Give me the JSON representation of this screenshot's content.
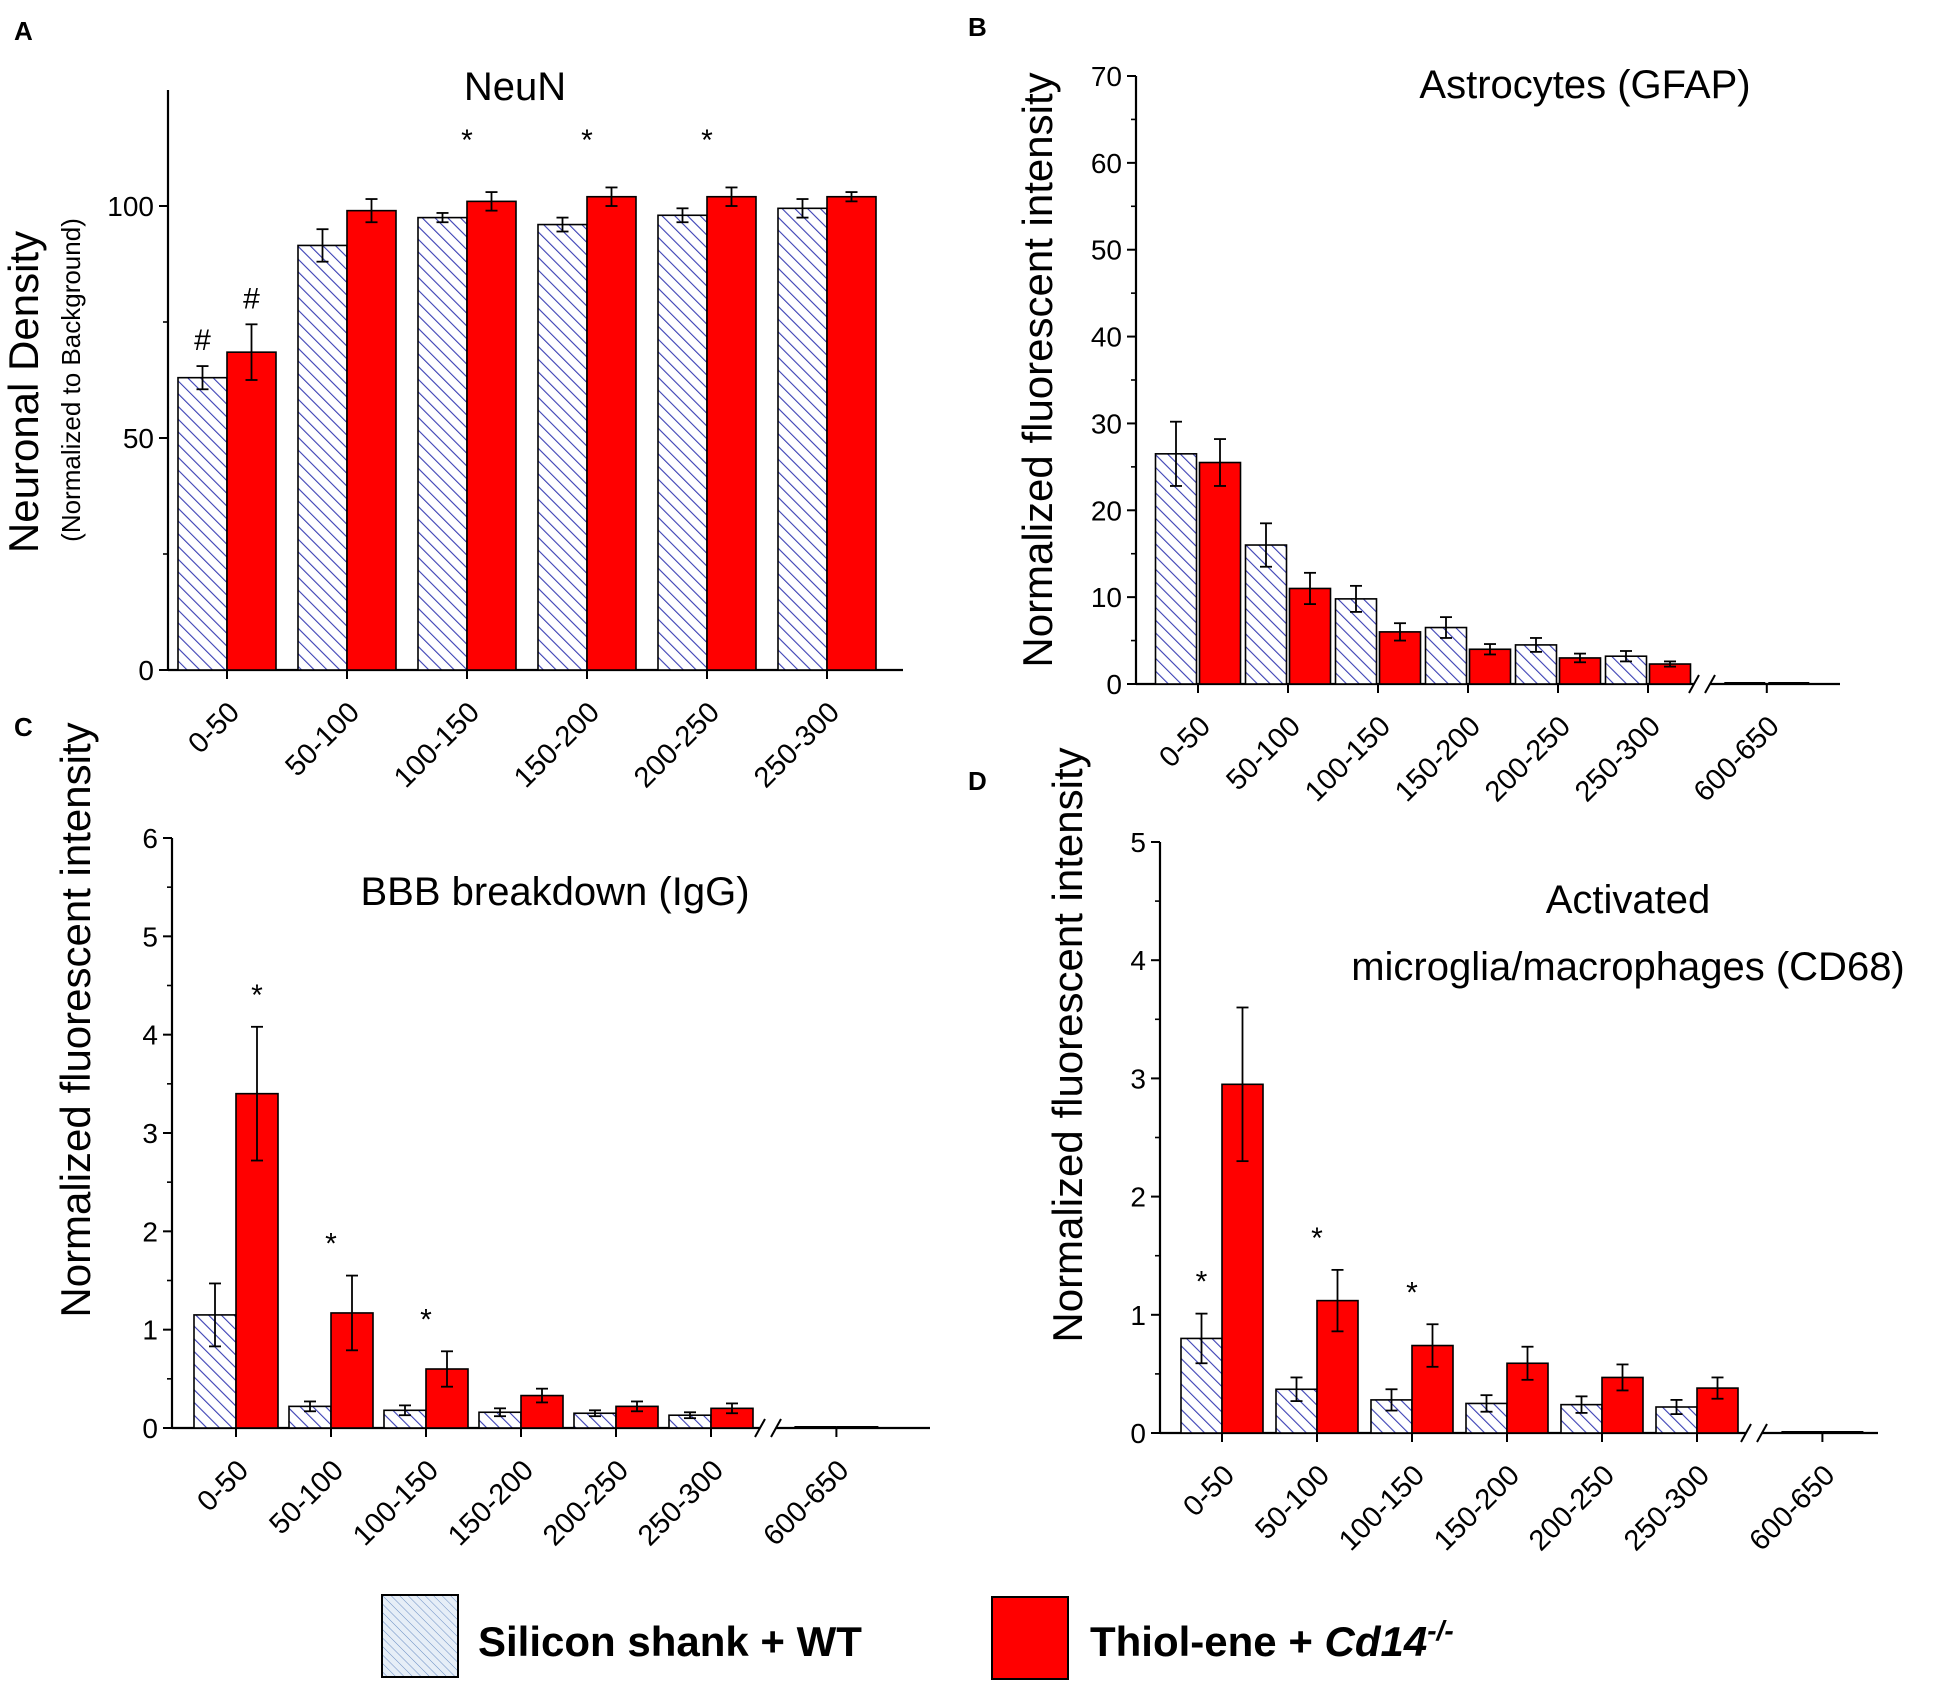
{
  "legend": {
    "series1": "Silicon shank + WT",
    "series2_prefix": "Thiol-ene + ",
    "series2_gene": "Cd14",
    "series2_sup": "-/-"
  },
  "colors": {
    "series1_hatch": "#3a3fb4",
    "series1_fill": "#ffffff",
    "series2_fill": "#ff0000",
    "legend_series1_fill": "#e6eef7"
  },
  "chart_data": [
    {
      "panel": "A",
      "type": "bar",
      "title": "NeuN",
      "ylabel": "Neuronal Density",
      "ylabel_sub": "(Normalized to Background)",
      "xlabel": "",
      "ylim": [
        0,
        125
      ],
      "yticks": [
        0,
        50,
        100
      ],
      "ytick_labels": [
        "0",
        "50",
        "100"
      ],
      "categories": [
        "0-50",
        "50-100",
        "100-150",
        "150-200",
        "200-250",
        "250-300"
      ],
      "axis_break": false,
      "series": [
        {
          "name": "Silicon shank + WT",
          "values": [
            63,
            91.5,
            97.5,
            96,
            98,
            99.5
          ],
          "errors": [
            2.5,
            3.5,
            1,
            1.5,
            1.5,
            2
          ]
        },
        {
          "name": "Thiol-ene + Cd14-/-",
          "values": [
            68.5,
            99,
            101,
            102,
            102,
            102
          ],
          "errors": [
            6,
            2.5,
            2,
            2,
            2,
            1
          ]
        }
      ],
      "annotations": [
        {
          "text": "#",
          "category": 0,
          "series": 0
        },
        {
          "text": "#",
          "category": 0,
          "series": 1
        },
        {
          "text": "*",
          "category": 2,
          "series": -1
        },
        {
          "text": "*",
          "category": 3,
          "series": -1
        },
        {
          "text": "*",
          "category": 4,
          "series": -1
        }
      ]
    },
    {
      "panel": "B",
      "type": "bar",
      "title": "Astrocytes (GFAP)",
      "ylabel": "Normalized fluorescent intensity",
      "xlabel": "",
      "ylim": [
        0,
        70
      ],
      "yticks": [
        0,
        10,
        20,
        30,
        40,
        50,
        60,
        70
      ],
      "ytick_labels": [
        "0",
        "10",
        "20",
        "30",
        "40",
        "50",
        "60",
        "70"
      ],
      "categories": [
        "0-50",
        "50-100",
        "100-150",
        "150-200",
        "200-250",
        "250-300",
        "600-650"
      ],
      "axis_break": true,
      "series": [
        {
          "name": "Silicon shank + WT",
          "values": [
            26.5,
            16,
            9.8,
            6.5,
            4.5,
            3.2,
            0
          ],
          "errors": [
            3.7,
            2.5,
            1.5,
            1.2,
            0.8,
            0.6,
            0
          ]
        },
        {
          "name": "Thiol-ene + Cd14-/-",
          "values": [
            25.5,
            11,
            6,
            4,
            3,
            2.3,
            0
          ],
          "errors": [
            2.7,
            1.8,
            1,
            0.6,
            0.5,
            0.3,
            0
          ]
        }
      ],
      "annotations": []
    },
    {
      "panel": "C",
      "type": "bar",
      "title": "BBB breakdown (IgG)",
      "ylabel": "Normalized fluorescent intensity",
      "xlabel": "",
      "ylim": [
        0,
        6
      ],
      "yticks": [
        0,
        1,
        2,
        3,
        4,
        5,
        6
      ],
      "ytick_labels": [
        "0",
        "1",
        "2",
        "3",
        "4",
        "5",
        "6"
      ],
      "categories": [
        "0-50",
        "50-100",
        "100-150",
        "150-200",
        "200-250",
        "250-300",
        "600-650"
      ],
      "axis_break": true,
      "series": [
        {
          "name": "Silicon shank + WT",
          "values": [
            1.15,
            0.22,
            0.18,
            0.16,
            0.15,
            0.13,
            0
          ],
          "errors": [
            0.32,
            0.05,
            0.05,
            0.04,
            0.03,
            0.03,
            0
          ]
        },
        {
          "name": "Thiol-ene + Cd14-/-",
          "values": [
            3.4,
            1.17,
            0.6,
            0.33,
            0.22,
            0.2,
            0
          ],
          "errors": [
            0.68,
            0.38,
            0.18,
            0.07,
            0.05,
            0.05,
            0
          ]
        }
      ],
      "annotations": [
        {
          "text": "*",
          "category": 0,
          "series": 1
        },
        {
          "text": "*",
          "category": 1,
          "series": -1
        },
        {
          "text": "*",
          "category": 2,
          "series": -1
        }
      ]
    },
    {
      "panel": "D",
      "type": "bar",
      "title_lines": [
        "Activated",
        "microglia/macrophages (CD68)"
      ],
      "ylabel": "Normalized fluorescent intensity",
      "xlabel": "",
      "ylim": [
        0,
        5
      ],
      "yticks": [
        0,
        1,
        2,
        3,
        4,
        5
      ],
      "ytick_labels": [
        "0",
        "1",
        "2",
        "3",
        "4",
        "5"
      ],
      "categories": [
        "0-50",
        "50-100",
        "100-150",
        "150-200",
        "200-250",
        "250-300",
        "600-650"
      ],
      "axis_break": true,
      "series": [
        {
          "name": "Silicon shank + WT",
          "values": [
            0.8,
            0.37,
            0.28,
            0.25,
            0.24,
            0.22,
            0
          ],
          "errors": [
            0.21,
            0.1,
            0.09,
            0.07,
            0.07,
            0.06,
            0
          ]
        },
        {
          "name": "Thiol-ene + Cd14-/-",
          "values": [
            2.95,
            1.12,
            0.74,
            0.59,
            0.47,
            0.38,
            0
          ],
          "errors": [
            0.65,
            0.26,
            0.18,
            0.14,
            0.11,
            0.09,
            0
          ]
        }
      ],
      "annotations": [
        {
          "text": "*",
          "category": 0,
          "series": 0
        },
        {
          "text": "*",
          "category": 1,
          "series": -1
        },
        {
          "text": "*",
          "category": 2,
          "series": -1
        }
      ]
    }
  ]
}
